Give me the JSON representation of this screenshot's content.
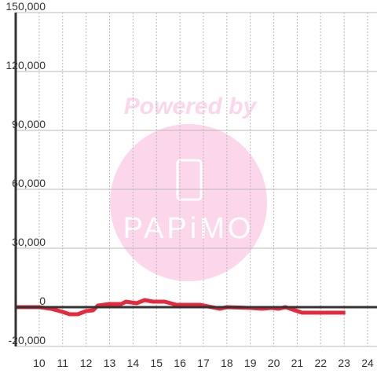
{
  "chart_data": {
    "type": "line",
    "watermark": {
      "line1": "Powered by",
      "line2": "PAPiMO"
    },
    "x": [
      9,
      10,
      10.5,
      11,
      11.3,
      11.65,
      12,
      12.3,
      12.5,
      13,
      13.5,
      13.7,
      14.15,
      14.5,
      14.85,
      15.35,
      15.85,
      16.85,
      17.7,
      18,
      19,
      19.5,
      19.9,
      20.2,
      20.5,
      21.2,
      23.05
    ],
    "series": [
      {
        "color": "#e8283c",
        "values": [
          0,
          0,
          -800,
          -2400,
          -3600,
          -3600,
          -2000,
          -1600,
          800,
          1600,
          1600,
          2800,
          2000,
          3600,
          2800,
          2800,
          1200,
          1200,
          -800,
          0,
          -400,
          -800,
          -400,
          -800,
          0,
          -2800,
          -2800
        ]
      }
    ],
    "xlim": [
      9,
      24.4
    ],
    "ylim": [
      -20000,
      150000
    ],
    "xticks": [
      10,
      11,
      12,
      13,
      14,
      15,
      16,
      17,
      18,
      19,
      20,
      21,
      22,
      23,
      24
    ],
    "yticks": [
      {
        "value": -20000,
        "label": "-20,000"
      },
      {
        "value": 0,
        "label": "0"
      },
      {
        "value": 30000,
        "label": "30,000"
      },
      {
        "value": 60000,
        "label": "60,000"
      },
      {
        "value": 90000,
        "label": "90,000"
      },
      {
        "value": 120000,
        "label": "120,000"
      },
      {
        "value": 150000,
        "label": "150,000"
      }
    ],
    "grid": true
  }
}
